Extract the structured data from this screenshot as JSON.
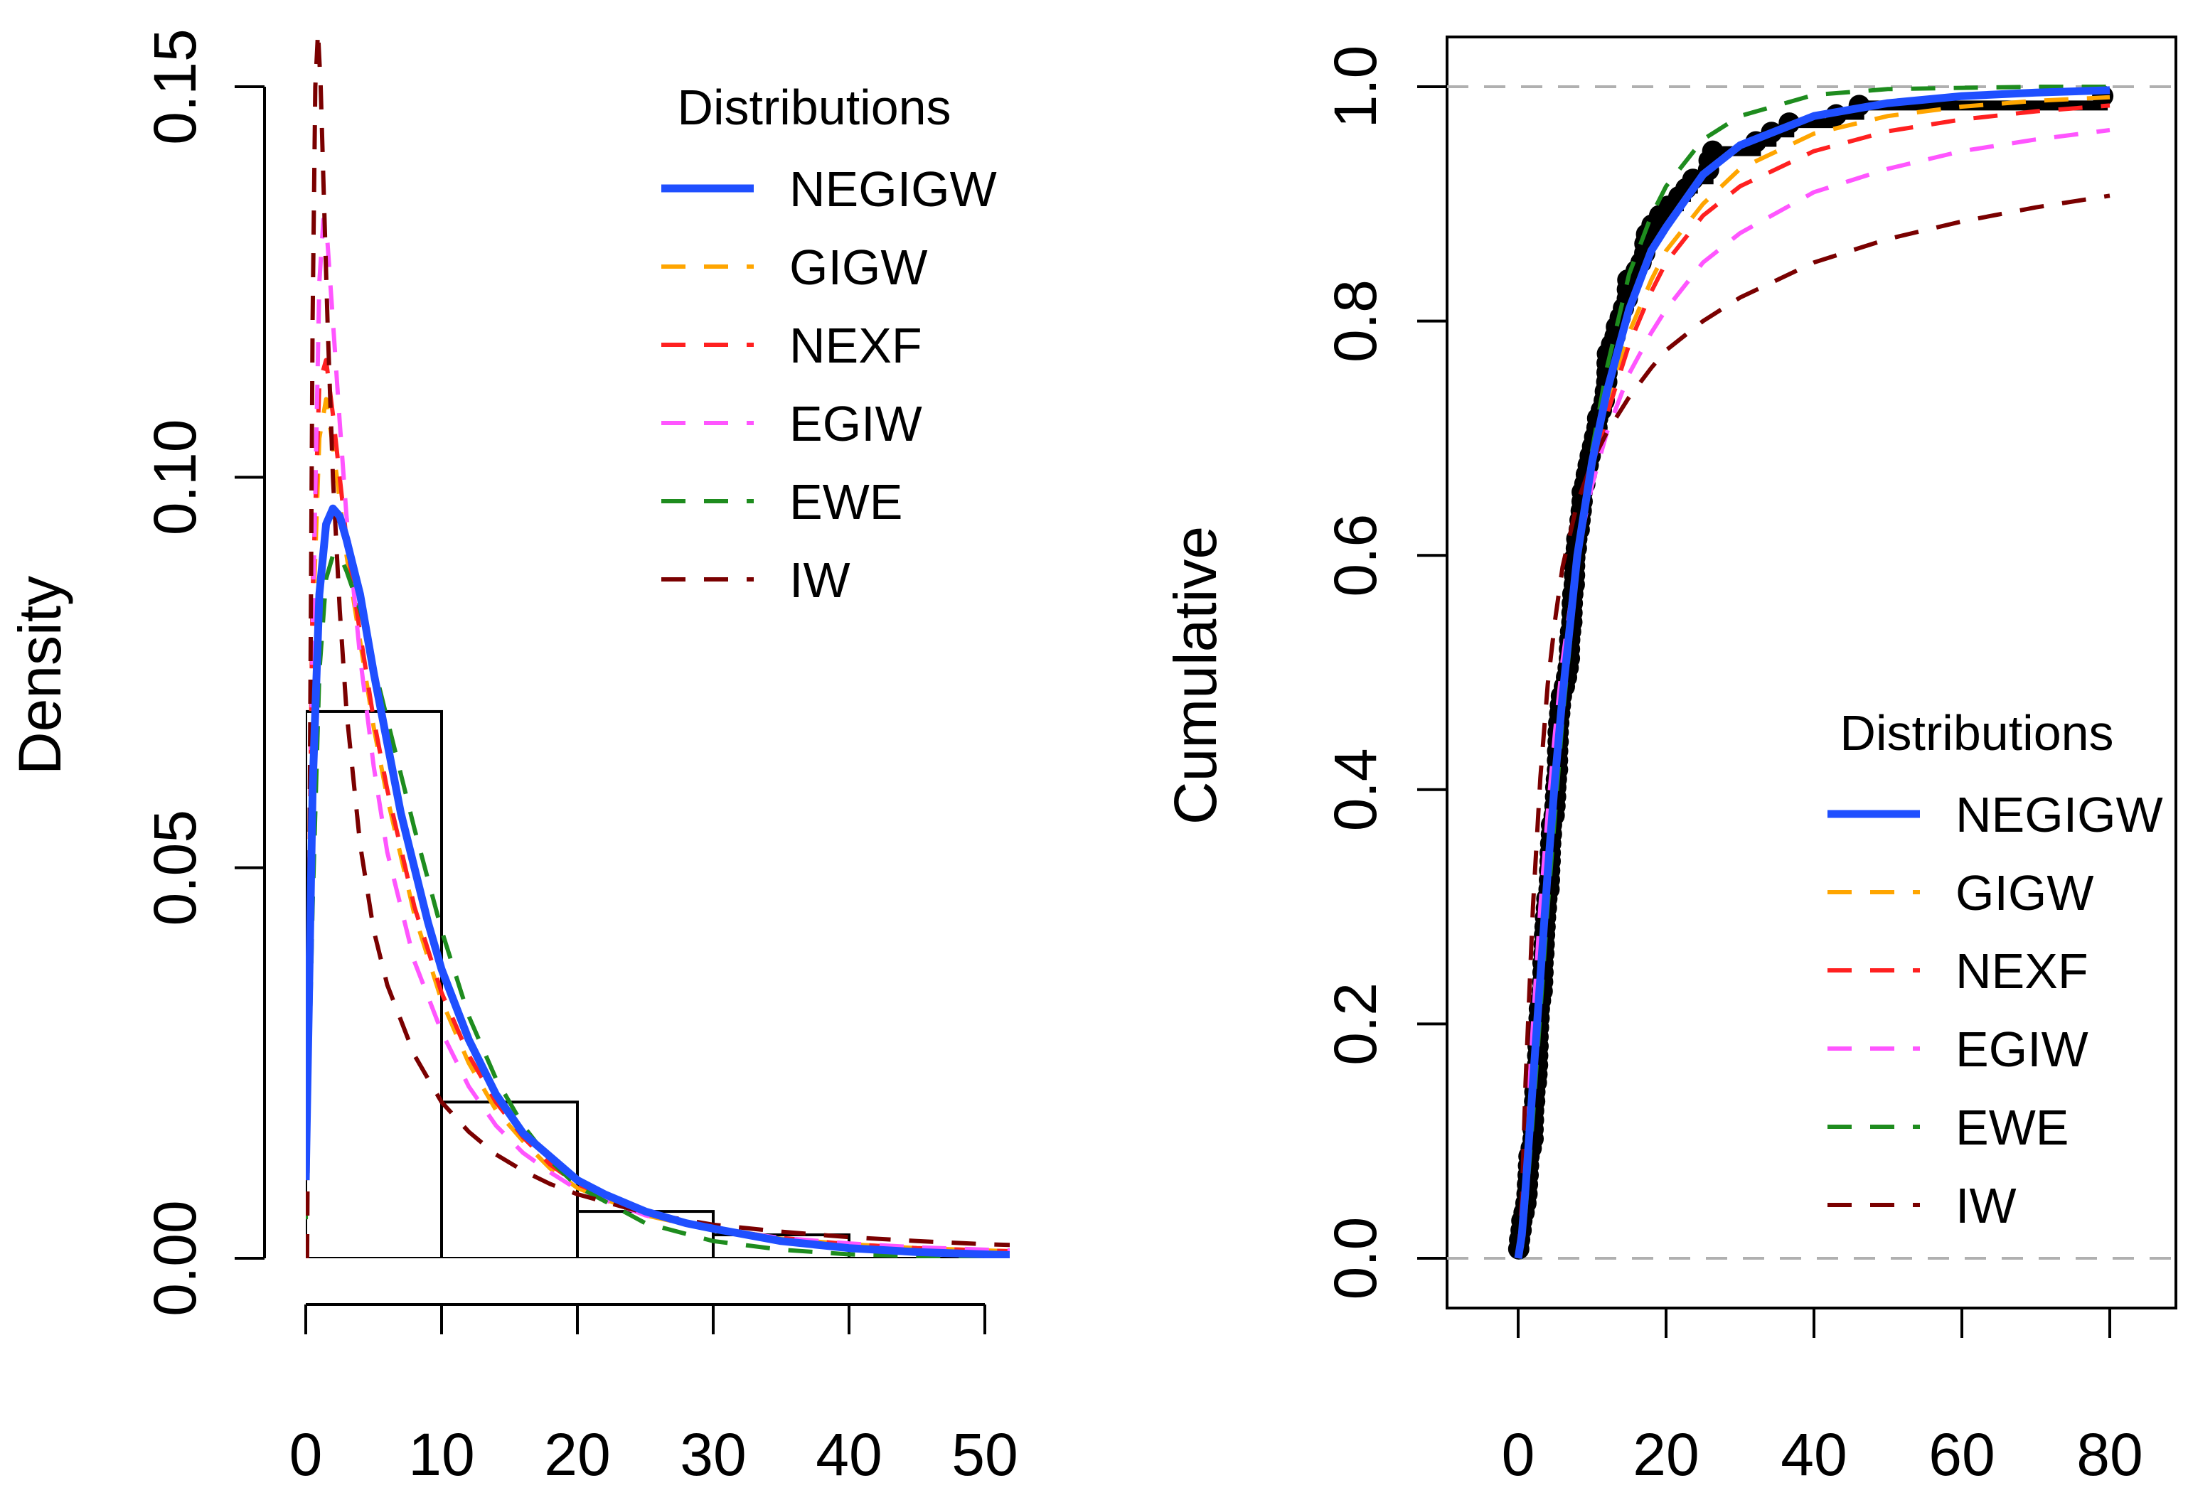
{
  "chart_data": [
    {
      "type": "line",
      "title": "",
      "xlabel": "",
      "ylabel": "Density",
      "xlim": [
        0,
        52
      ],
      "ylim": [
        0,
        0.155
      ],
      "xticks": [
        0,
        10,
        20,
        30,
        40,
        50
      ],
      "xtick_labels": [
        "0",
        "10",
        "20",
        "30",
        "40",
        "50"
      ],
      "yticks": [
        0,
        0.05,
        0.1,
        0.15
      ],
      "ytick_labels": [
        "0.00",
        "0.05",
        "0.10",
        "0.15"
      ],
      "histogram": {
        "bins": [
          [
            0,
            10
          ],
          [
            10,
            20
          ],
          [
            20,
            30
          ],
          [
            30,
            40
          ],
          [
            40,
            50
          ]
        ],
        "density": [
          0.07,
          0.02,
          0.006,
          0.003,
          0.001
        ]
      },
      "legend": {
        "title": "Distributions",
        "position": "top-right",
        "entries": [
          "NEGIGW",
          "GIGW",
          "NEXF",
          "EGIW",
          "EWE",
          "IW"
        ]
      },
      "series": [
        {
          "name": "NEGIGW",
          "color": "#1f4fff",
          "dash": "solid",
          "x": [
            0,
            0.5,
            1,
            1.5,
            2,
            2.5,
            3,
            4,
            5,
            6,
            7,
            8,
            9,
            10,
            12,
            14,
            16,
            18,
            20,
            22,
            25,
            28,
            30,
            35,
            40,
            45,
            50,
            52
          ],
          "y": [
            0.01,
            0.06,
            0.085,
            0.094,
            0.096,
            0.095,
            0.092,
            0.085,
            0.075,
            0.066,
            0.057,
            0.05,
            0.043,
            0.037,
            0.028,
            0.021,
            0.016,
            0.013,
            0.01,
            0.0082,
            0.006,
            0.0045,
            0.0038,
            0.0022,
            0.0013,
            0.0008,
            0.0005,
            0.0004
          ]
        },
        {
          "name": "GIGW",
          "color": "#ffa500",
          "dash": "dashed",
          "x": [
            0,
            0.5,
            1,
            1.5,
            2,
            2.5,
            3,
            4,
            5,
            6,
            8,
            10,
            12,
            14,
            16,
            18,
            20,
            25,
            30,
            35,
            40,
            45,
            50,
            52
          ],
          "y": [
            0.01,
            0.08,
            0.105,
            0.11,
            0.104,
            0.097,
            0.09,
            0.079,
            0.068,
            0.059,
            0.044,
            0.033,
            0.025,
            0.019,
            0.015,
            0.0115,
            0.009,
            0.0055,
            0.0036,
            0.0025,
            0.0018,
            0.0013,
            0.001,
            0.0009
          ]
        },
        {
          "name": "NEXF",
          "color": "#ff2020",
          "dash": "dashed",
          "x": [
            0,
            0.5,
            1,
            1.5,
            2,
            2.5,
            3,
            4,
            5,
            6,
            8,
            10,
            12,
            14,
            16,
            18,
            20,
            25,
            30,
            35,
            40,
            45,
            50,
            52
          ],
          "y": [
            0.01,
            0.085,
            0.112,
            0.115,
            0.108,
            0.1,
            0.092,
            0.08,
            0.069,
            0.06,
            0.045,
            0.034,
            0.026,
            0.02,
            0.0155,
            0.012,
            0.0095,
            0.0058,
            0.0038,
            0.0026,
            0.0018,
            0.0013,
            0.001,
            0.0009
          ]
        },
        {
          "name": "EGIW",
          "color": "#ff55ff",
          "dash": "dashed",
          "x": [
            0,
            0.5,
            1,
            1.3,
            1.6,
            2,
            2.5,
            3,
            4,
            5,
            6,
            8,
            10,
            12,
            14,
            16,
            18,
            20,
            25,
            30,
            35,
            40,
            45,
            50,
            52
          ],
          "y": [
            0.005,
            0.08,
            0.125,
            0.133,
            0.13,
            0.12,
            0.107,
            0.095,
            0.077,
            0.063,
            0.052,
            0.038,
            0.029,
            0.022,
            0.017,
            0.0135,
            0.011,
            0.0088,
            0.0055,
            0.0037,
            0.0026,
            0.0019,
            0.0014,
            0.0011,
            0.001
          ]
        },
        {
          "name": "EWE",
          "color": "#1e8c1e",
          "dash": "dashed",
          "x": [
            0,
            0.5,
            1,
            1.5,
            2,
            2.5,
            3,
            4,
            5,
            6,
            7,
            8,
            10,
            12,
            14,
            16,
            18,
            20,
            25,
            30,
            35,
            40,
            45,
            50,
            52
          ],
          "y": [
            0.005,
            0.045,
            0.075,
            0.087,
            0.09,
            0.09,
            0.088,
            0.083,
            0.076,
            0.069,
            0.062,
            0.055,
            0.042,
            0.031,
            0.023,
            0.017,
            0.0125,
            0.0092,
            0.0045,
            0.0022,
            0.0011,
            0.0005,
            0.0003,
            0.0002,
            0.0001
          ]
        },
        {
          "name": "IW",
          "color": "#7a0000",
          "dash": "dashed",
          "x": [
            0.1,
            0.3,
            0.5,
            0.7,
            0.9,
            1.1,
            1.3,
            1.6,
            2,
            2.5,
            3,
            4,
            5,
            6,
            8,
            10,
            12,
            14,
            16,
            18,
            20,
            25,
            30,
            35,
            40,
            45,
            50,
            52
          ],
          "y": [
            0.0,
            0.06,
            0.12,
            0.15,
            0.157,
            0.15,
            0.138,
            0.12,
            0.1,
            0.083,
            0.07,
            0.053,
            0.042,
            0.035,
            0.026,
            0.02,
            0.0162,
            0.0133,
            0.0112,
            0.0095,
            0.0082,
            0.0058,
            0.0043,
            0.0034,
            0.0027,
            0.0022,
            0.0018,
            0.0017
          ]
        }
      ]
    },
    {
      "type": "line",
      "title": "",
      "xlabel": "",
      "ylabel": "Cumulative",
      "xlim": [
        -10,
        84
      ],
      "ylim": [
        -0.04,
        1.04
      ],
      "xticks": [
        0,
        20,
        40,
        60,
        80
      ],
      "xtick_labels": [
        "0",
        "20",
        "40",
        "60",
        "80"
      ],
      "yticks": [
        0,
        0.2,
        0.4,
        0.6,
        0.8,
        1.0
      ],
      "ytick_labels": [
        "0.0",
        "0.2",
        "0.4",
        "0.6",
        "0.8",
        "1.0"
      ],
      "reference_lines": [
        0,
        1
      ],
      "ecdf_points": {
        "x": [
          0.08,
          0.2,
          0.4,
          0.5,
          0.8,
          1.05,
          1.2,
          1.26,
          1.35,
          1.4,
          1.46,
          1.76,
          2.02,
          2.02,
          2.07,
          2.09,
          2.23,
          2.26,
          2.46,
          2.54,
          2.62,
          2.64,
          2.69,
          2.69,
          2.75,
          2.83,
          2.87,
          3.02,
          3.25,
          3.31,
          3.36,
          3.36,
          3.48,
          3.52,
          3.57,
          3.64,
          3.7,
          3.82,
          3.88,
          4.18,
          4.23,
          4.26,
          4.33,
          4.34,
          4.4,
          4.5,
          4.51,
          4.87,
          4.98,
          5.06,
          5.09,
          5.17,
          5.32,
          5.32,
          5.34,
          5.41,
          5.41,
          5.49,
          5.62,
          5.71,
          5.85,
          6.25,
          6.54,
          6.76,
          6.93,
          6.94,
          6.97,
          7.09,
          7.26,
          7.28,
          7.32,
          7.39,
          7.59,
          7.62,
          7.63,
          7.66,
          7.87,
          7.93,
          8.26,
          8.37,
          8.53,
          8.65,
          8.66,
          9.02,
          9.22,
          9.47,
          9.74,
          10.06,
          10.34,
          10.66,
          10.75,
          11.25,
          11.64,
          11.79,
          11.98,
          12.02,
          12.03,
          12.07,
          12.63,
          13.11,
          13.29,
          13.8,
          14.24,
          14.76,
          14.77,
          14.83,
          15.96,
          16.62,
          17.12,
          17.14,
          17.36,
          18.1,
          19.13,
          20.28,
          21.73,
          22.69,
          23.63,
          25.74,
          25.82,
          26.31,
          32.15,
          34.26,
          36.66,
          43.01,
          46.12,
          79.05
        ],
        "y": [
          0.008,
          0.016,
          0.024,
          0.032,
          0.039,
          0.047,
          0.055,
          0.063,
          0.071,
          0.079,
          0.087,
          0.094,
          0.102,
          0.11,
          0.118,
          0.126,
          0.134,
          0.142,
          0.15,
          0.157,
          0.165,
          0.173,
          0.181,
          0.189,
          0.197,
          0.205,
          0.213,
          0.22,
          0.228,
          0.236,
          0.244,
          0.252,
          0.26,
          0.268,
          0.276,
          0.283,
          0.291,
          0.299,
          0.307,
          0.315,
          0.323,
          0.331,
          0.339,
          0.346,
          0.354,
          0.362,
          0.37,
          0.378,
          0.386,
          0.394,
          0.402,
          0.409,
          0.417,
          0.425,
          0.433,
          0.441,
          0.449,
          0.457,
          0.465,
          0.472,
          0.48,
          0.488,
          0.496,
          0.504,
          0.512,
          0.52,
          0.528,
          0.535,
          0.543,
          0.551,
          0.559,
          0.567,
          0.575,
          0.583,
          0.591,
          0.598,
          0.606,
          0.614,
          0.622,
          0.63,
          0.638,
          0.646,
          0.654,
          0.661,
          0.669,
          0.677,
          0.685,
          0.693,
          0.701,
          0.709,
          0.717,
          0.724,
          0.732,
          0.74,
          0.748,
          0.756,
          0.764,
          0.772,
          0.78,
          0.787,
          0.795,
          0.803,
          0.811,
          0.819,
          0.827,
          0.835,
          0.843,
          0.85,
          0.858,
          0.866,
          0.874,
          0.882,
          0.89,
          0.898,
          0.906,
          0.913,
          0.921,
          0.929,
          0.937,
          0.945,
          0.953,
          0.961,
          0.969,
          0.976,
          0.984,
          0.992
        ]
      },
      "legend": {
        "title": "Distributions",
        "position": "bottom-right",
        "entries": [
          "NEGIGW",
          "GIGW",
          "NEXF",
          "EGIW",
          "EWE",
          "IW"
        ]
      },
      "series": [
        {
          "name": "NEGIGW",
          "color": "#1f4fff",
          "dash": "solid",
          "x": [
            0,
            0.5,
            1,
            2,
            3,
            4,
            5,
            6,
            8,
            10,
            12,
            15,
            18,
            20,
            25,
            30,
            40,
            50,
            60,
            70,
            80
          ],
          "y": [
            0.0,
            0.02,
            0.06,
            0.15,
            0.24,
            0.33,
            0.41,
            0.48,
            0.6,
            0.68,
            0.74,
            0.81,
            0.86,
            0.88,
            0.925,
            0.95,
            0.975,
            0.986,
            0.992,
            0.995,
            0.997
          ]
        },
        {
          "name": "GIGW",
          "color": "#ffa500",
          "dash": "dashed",
          "x": [
            0,
            0.5,
            1,
            2,
            3,
            4,
            5,
            6,
            8,
            10,
            12,
            15,
            18,
            20,
            25,
            30,
            40,
            50,
            60,
            70,
            80
          ],
          "y": [
            0.0,
            0.03,
            0.08,
            0.18,
            0.28,
            0.37,
            0.44,
            0.5,
            0.6,
            0.675,
            0.73,
            0.79,
            0.835,
            0.86,
            0.9,
            0.93,
            0.96,
            0.975,
            0.983,
            0.988,
            0.991
          ]
        },
        {
          "name": "NEXF",
          "color": "#ff2020",
          "dash": "dashed",
          "x": [
            0,
            0.5,
            1,
            2,
            3,
            4,
            5,
            6,
            8,
            10,
            12,
            15,
            18,
            20,
            25,
            30,
            40,
            50,
            60,
            70,
            80
          ],
          "y": [
            0.0,
            0.03,
            0.08,
            0.185,
            0.285,
            0.37,
            0.44,
            0.5,
            0.6,
            0.67,
            0.72,
            0.78,
            0.825,
            0.85,
            0.89,
            0.915,
            0.945,
            0.962,
            0.972,
            0.979,
            0.984
          ]
        },
        {
          "name": "EGIW",
          "color": "#ff55ff",
          "dash": "dashed",
          "x": [
            0,
            0.5,
            1,
            2,
            3,
            4,
            5,
            6,
            8,
            10,
            12,
            15,
            18,
            20,
            25,
            30,
            40,
            50,
            60,
            70,
            80
          ],
          "y": [
            0.0,
            0.03,
            0.09,
            0.2,
            0.3,
            0.38,
            0.45,
            0.51,
            0.6,
            0.66,
            0.705,
            0.755,
            0.79,
            0.81,
            0.85,
            0.875,
            0.91,
            0.93,
            0.945,
            0.955,
            0.963
          ]
        },
        {
          "name": "EWE",
          "color": "#1e8c1e",
          "dash": "dashed",
          "x": [
            0,
            0.5,
            1,
            2,
            3,
            4,
            5,
            6,
            8,
            10,
            12,
            15,
            18,
            20,
            25,
            30,
            40,
            50,
            60,
            70,
            80
          ],
          "y": [
            0.0,
            0.01,
            0.04,
            0.12,
            0.21,
            0.3,
            0.38,
            0.46,
            0.59,
            0.69,
            0.76,
            0.84,
            0.89,
            0.915,
            0.955,
            0.975,
            0.993,
            0.998,
            0.999,
            1.0,
            1.0
          ]
        },
        {
          "name": "IW",
          "color": "#7a0000",
          "dash": "dashed",
          "x": [
            0,
            0.5,
            1,
            2,
            3,
            4,
            5,
            6,
            8,
            10,
            12,
            15,
            18,
            20,
            25,
            30,
            40,
            50,
            60,
            70,
            80
          ],
          "y": [
            0.0,
            0.05,
            0.15,
            0.3,
            0.41,
            0.49,
            0.545,
            0.59,
            0.645,
            0.68,
            0.705,
            0.735,
            0.76,
            0.775,
            0.8,
            0.82,
            0.85,
            0.87,
            0.885,
            0.897,
            0.907
          ]
        }
      ]
    }
  ]
}
